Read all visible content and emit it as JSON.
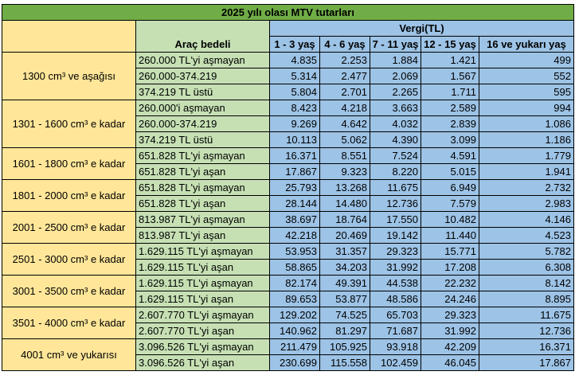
{
  "title": "2025 yılı olası MTV tutarları",
  "headers": {
    "arac_bedeli": "Araç bedeli",
    "vergi": "Vergi(TL)",
    "ages": [
      "1 - 3 yaş",
      "4 - 6 yaş",
      "7 - 11 yaş",
      "12 - 15 yaş",
      "16 ve yukarı yaş"
    ]
  },
  "groups": [
    {
      "engine": "1300 cm³ ve aşağısı",
      "rows": [
        {
          "bedel": "260.000 TL'yi aşmayan",
          "v": [
            "4.835",
            "2.253",
            "1.884",
            "1.421",
            "499"
          ]
        },
        {
          "bedel": "260.000-374.219",
          "v": [
            "5.314",
            "2.477",
            "2.069",
            "1.567",
            "552"
          ]
        },
        {
          "bedel": "374.219 TL üstü",
          "v": [
            "5.804",
            "2.701",
            "2.265",
            "1.711",
            "595"
          ]
        }
      ]
    },
    {
      "engine": "1301 - 1600 cm³ e kadar",
      "rows": [
        {
          "bedel": "260.000'i aşmayan",
          "v": [
            "8.423",
            "4.218",
            "3.663",
            "2.589",
            "994"
          ]
        },
        {
          "bedel": "260.000-374.219",
          "v": [
            "9.269",
            "4.642",
            "4.032",
            "2.839",
            "1.086"
          ]
        },
        {
          "bedel": "374.219 TL üstü",
          "v": [
            "10.113",
            "5.062",
            "4.390",
            "3.099",
            "1.186"
          ]
        }
      ]
    },
    {
      "engine": "1601 - 1800 cm³ e kadar",
      "rows": [
        {
          "bedel": "651.828 TL'yi aşmayan",
          "v": [
            "16.371",
            "8.551",
            "7.524",
            "4.591",
            "1.779"
          ]
        },
        {
          "bedel": "651.828 TL'yi aşan",
          "v": [
            "17.867",
            "9.323",
            "8.220",
            "5.015",
            "1.941"
          ]
        }
      ]
    },
    {
      "engine": "1801 - 2000 cm³ e kadar",
      "rows": [
        {
          "bedel": "651.828 TL'yi aşmayan",
          "v": [
            "25.793",
            "13.268",
            "11.675",
            "6.949",
            "2.732"
          ]
        },
        {
          "bedel": "651.828 TL'yi aşan",
          "v": [
            "28.144",
            "14.480",
            "12.736",
            "7.579",
            "2.983"
          ]
        }
      ]
    },
    {
      "engine": "2001 - 2500 cm³ e kadar",
      "rows": [
        {
          "bedel": "813.987 TL'yi aşmayan",
          "v": [
            "38.697",
            "18.764",
            "17.550",
            "10.482",
            "4.146"
          ]
        },
        {
          "bedel": "813.987 TL'yi aşan",
          "v": [
            "42.218",
            "20.469",
            "19.142",
            "11.440",
            "4.523"
          ]
        }
      ]
    },
    {
      "engine": "2501 - 3000 cm³ e kadar",
      "rows": [
        {
          "bedel": "1.629.115 TL'yi aşmayan",
          "v": [
            "53.953",
            "31.357",
            "29.323",
            "15.771",
            "5.782"
          ]
        },
        {
          "bedel": "1.629.115 TL'yi aşan",
          "v": [
            "58.865",
            "34.203",
            "31.992",
            "17.208",
            "6.308"
          ]
        }
      ]
    },
    {
      "engine": "3001 - 3500 cm³ e kadar",
      "rows": [
        {
          "bedel": "1.629.115 TL'yi aşmayan",
          "v": [
            "82.174",
            "49.391",
            "44.538",
            "22.232",
            "8.142"
          ]
        },
        {
          "bedel": "1.629.115 TL'yi aşan",
          "v": [
            "89.653",
            "53.877",
            "48.586",
            "24.246",
            "8.895"
          ]
        }
      ]
    },
    {
      "engine": "3501 - 4000 cm³ e kadar",
      "rows": [
        {
          "bedel": "2.607.770 TL'yi aşmayan",
          "v": [
            "129.202",
            "74.525",
            "65.703",
            "29.323",
            "11.675"
          ]
        },
        {
          "bedel": "2.607.770 TL'yi aşan",
          "v": [
            "140.962",
            "81.297",
            "71.687",
            "31.992",
            "12.736"
          ]
        }
      ]
    },
    {
      "engine": "4001 cm³ ve yukarısı",
      "rows": [
        {
          "bedel": "3.096.526 TL'yi aşmayan",
          "v": [
            "211.479",
            "105.925",
            "93.918",
            "42.209",
            "16.371"
          ]
        },
        {
          "bedel": "3.096.526 TL'yi aşan",
          "v": [
            "230.699",
            "115.558",
            "102.459",
            "46.045",
            "17.867"
          ]
        }
      ]
    }
  ]
}
